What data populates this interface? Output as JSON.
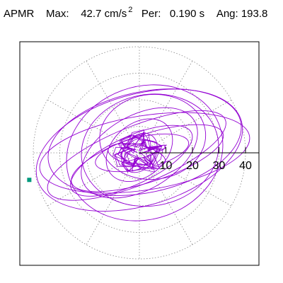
{
  "header": {
    "station": "APMR",
    "max_label": "Max:",
    "max_value": "42.7",
    "max_units": "cm/s",
    "max_units_exp": "2",
    "per_label": "Per:",
    "per_value": "0.190",
    "per_units": "s",
    "ang_label": "Ang:",
    "ang_value": "193.8"
  },
  "colors": {
    "trace": "#9400d3",
    "marker": "#009a7d",
    "grid": "#888888",
    "axis": "#000000"
  },
  "chart_data": {
    "type": "scatter",
    "title": "",
    "xlabel": "",
    "ylabel": "",
    "polar_grid": true,
    "ring_values": [
      10,
      20,
      30,
      40
    ],
    "tick_labels": [
      "10",
      "20",
      "30",
      "40"
    ],
    "max_value": 42.7,
    "max_angle_deg": 193.8,
    "marker_point": [
      -41.5,
      -10.2
    ],
    "xlim": [
      -45.5,
      45.5
    ],
    "ylim": [
      -41.5,
      41.5
    ],
    "trace_ellipses": [
      {
        "cx": 2,
        "cy": 0,
        "a": 40,
        "b": 14,
        "rot": 9
      },
      {
        "cx": 0,
        "cy": 1,
        "a": 40,
        "b": 21,
        "rot": 16
      },
      {
        "cx": 2,
        "cy": 4,
        "a": 37,
        "b": 19,
        "rot": 12
      },
      {
        "cx": 2,
        "cy": 0,
        "a": 30,
        "b": 25,
        "rot": 20
      },
      {
        "cx": -1,
        "cy": -1,
        "a": 36,
        "b": 11,
        "rot": 22
      },
      {
        "cx": 4,
        "cy": 1,
        "a": 26,
        "b": 21,
        "rot": 10
      },
      {
        "cx": 3,
        "cy": -2,
        "a": 30,
        "b": 9,
        "rot": 18
      },
      {
        "cx": 0,
        "cy": 0,
        "a": 24,
        "b": 14,
        "rot": 30
      },
      {
        "cx": 1,
        "cy": 0,
        "a": 18,
        "b": 6,
        "rot": 13
      },
      {
        "cx": 0,
        "cy": 1,
        "a": 14,
        "b": 10,
        "rot": 40
      },
      {
        "cx": -1,
        "cy": -1,
        "a": 11,
        "b": 4,
        "rot": -12
      },
      {
        "cx": 0,
        "cy": 0,
        "a": 8,
        "b": 6,
        "rot": 55
      },
      {
        "cx": 5,
        "cy": 6,
        "a": 20,
        "b": 16,
        "rot": 5
      },
      {
        "cx": -3,
        "cy": -3,
        "a": 25,
        "b": 9,
        "rot": 25
      }
    ]
  }
}
